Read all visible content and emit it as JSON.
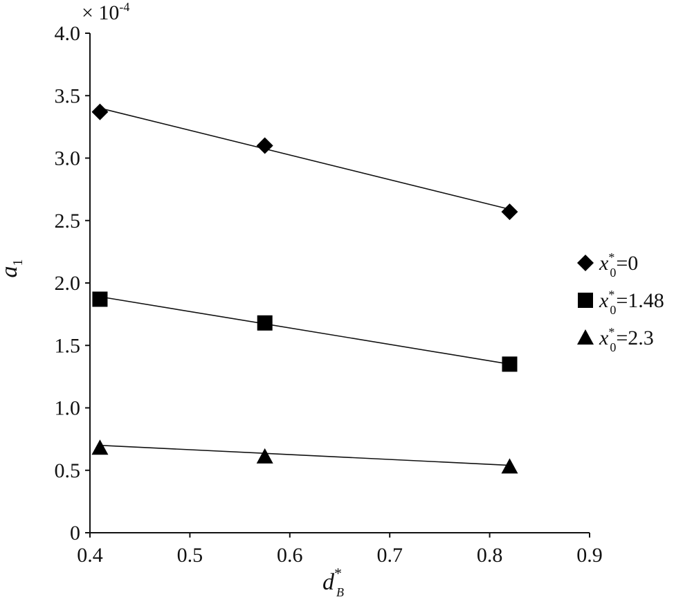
{
  "chart_data": {
    "type": "scatter",
    "xlabel": {
      "main": "d",
      "sup": "*",
      "sub": "B"
    },
    "ylabel": {
      "main": "a",
      "sub": "1"
    },
    "multiplier": {
      "text": "× 10",
      "exp": "-4"
    },
    "xlim": [
      0.4,
      0.9
    ],
    "ylim": [
      0,
      4.0
    ],
    "xticks": [
      "0.4",
      "0.5",
      "0.6",
      "0.7",
      "0.8",
      "0.9"
    ],
    "yticks": [
      "0",
      "0.5",
      "1.0",
      "1.5",
      "2.0",
      "2.5",
      "3.0",
      "3.5",
      "4.0"
    ],
    "grid": false,
    "legend_position": "right",
    "series": [
      {
        "name": "x*0=0",
        "legend": {
          "main": "x",
          "sup": "*",
          "sub": "0",
          "rest": "=0"
        },
        "marker": "diamond",
        "x": [
          0.41,
          0.575,
          0.82
        ],
        "y": [
          3.37,
          3.1,
          2.57
        ],
        "fit": [
          [
            0.41,
            3.4
          ],
          [
            0.82,
            2.59
          ]
        ]
      },
      {
        "name": "x*0=1.48",
        "legend": {
          "main": "x",
          "sup": "*",
          "sub": "0",
          "rest": "=1.48"
        },
        "marker": "square",
        "x": [
          0.41,
          0.575,
          0.82
        ],
        "y": [
          1.87,
          1.68,
          1.35
        ],
        "fit": [
          [
            0.41,
            1.89
          ],
          [
            0.82,
            1.35
          ]
        ]
      },
      {
        "name": "x*0=2.3",
        "legend": {
          "main": "x",
          "sup": "*",
          "sub": "0",
          "rest": "=2.3"
        },
        "marker": "triangle",
        "x": [
          0.41,
          0.575,
          0.82
        ],
        "y": [
          0.68,
          0.61,
          0.53
        ],
        "fit": [
          [
            0.41,
            0.7
          ],
          [
            0.82,
            0.54
          ]
        ]
      }
    ]
  }
}
